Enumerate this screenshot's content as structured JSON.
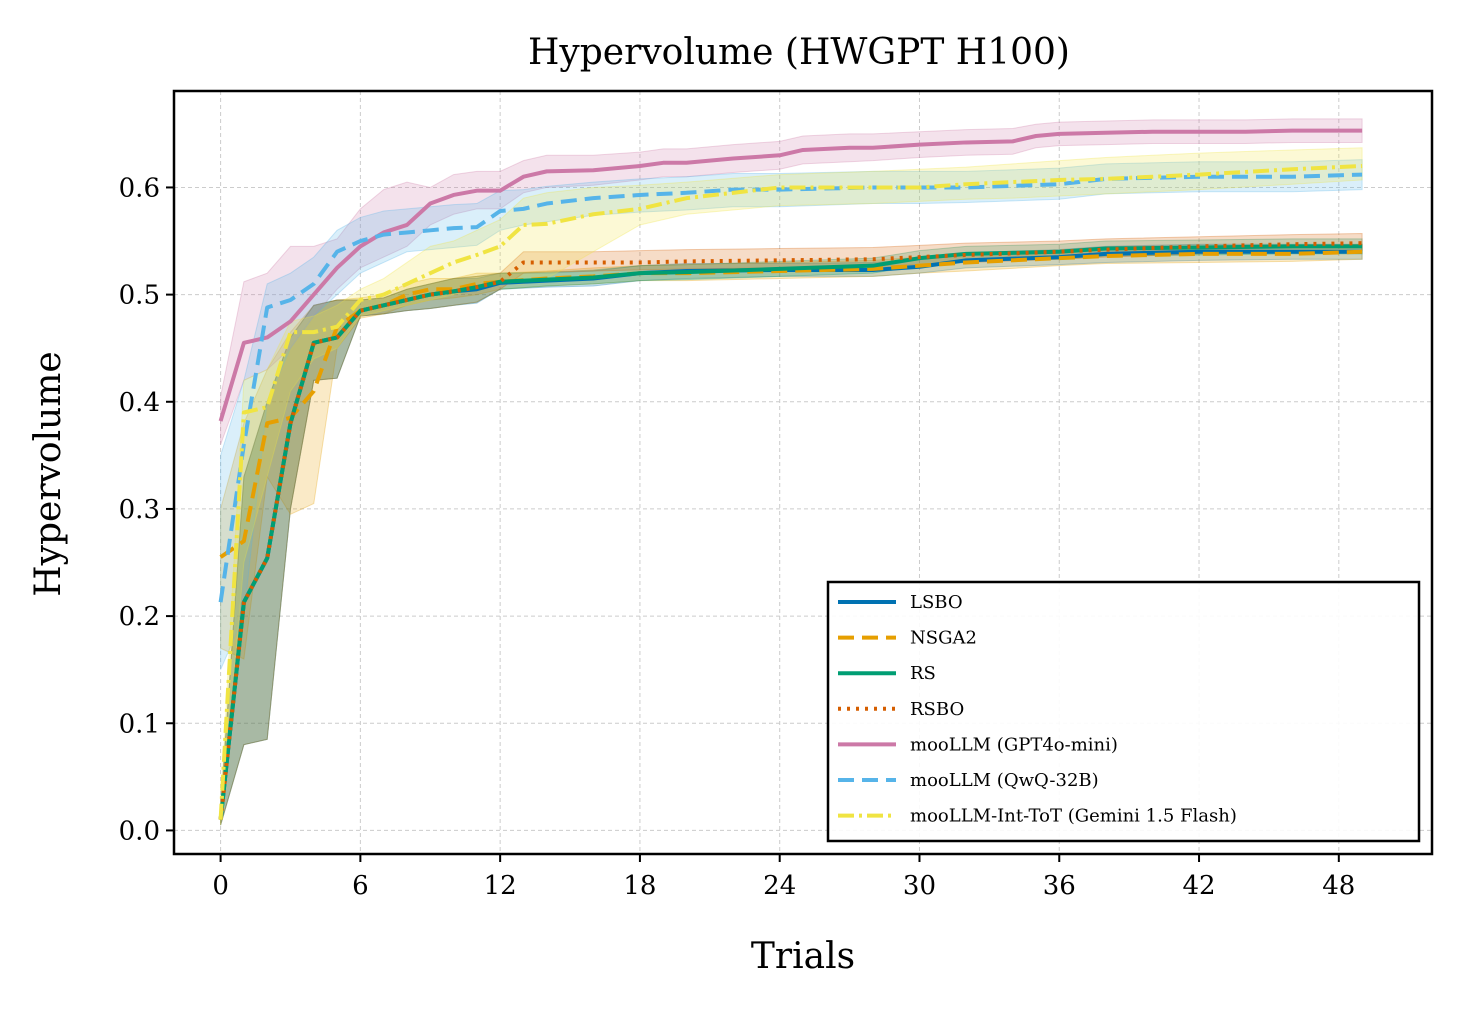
{
  "chart_data": {
    "type": "line",
    "title": "Hypervolume (HWGPT H100)",
    "xlabel": "Trials",
    "ylabel": "Hypervolume",
    "xlim": [
      -2,
      52
    ],
    "ylim": [
      -0.022,
      0.69
    ],
    "xticks": [
      0,
      6,
      12,
      18,
      24,
      30,
      36,
      42,
      48
    ],
    "xtick_labels": [
      "0",
      "6",
      "12",
      "18",
      "24",
      "30",
      "36",
      "42",
      "48"
    ],
    "yticks": [
      0.0,
      0.1,
      0.2,
      0.3,
      0.4,
      0.5,
      0.6
    ],
    "ytick_labels": [
      "0.0",
      "0.1",
      "0.2",
      "0.3",
      "0.4",
      "0.5",
      "0.6"
    ],
    "grid": true,
    "legend_position": "lower-right",
    "series": [
      {
        "name": "LSBO",
        "color": "#0072b2",
        "dash": "solid",
        "x": [
          0,
          1,
          2,
          3,
          4,
          5,
          6,
          7,
          8,
          9,
          10,
          11,
          12,
          14,
          16,
          18,
          20,
          24,
          28,
          30,
          32,
          36,
          38,
          42,
          46,
          49
        ],
        "y": [
          0.01,
          0.213,
          0.254,
          0.38,
          0.455,
          0.46,
          0.485,
          0.49,
          0.495,
          0.5,
          0.503,
          0.505,
          0.511,
          0.513,
          0.515,
          0.52,
          0.522,
          0.523,
          0.523,
          0.526,
          0.532,
          0.535,
          0.538,
          0.54,
          0.54,
          0.54
        ],
        "lower": [
          0.005,
          0.08,
          0.085,
          0.3,
          0.42,
          0.422,
          0.48,
          0.482,
          0.485,
          0.487,
          0.49,
          0.492,
          0.505,
          0.507,
          0.508,
          0.513,
          0.515,
          0.517,
          0.517,
          0.52,
          0.525,
          0.528,
          0.53,
          0.532,
          0.533,
          0.533
        ],
        "upper": [
          0.02,
          0.33,
          0.4,
          0.46,
          0.49,
          0.495,
          0.495,
          0.497,
          0.505,
          0.51,
          0.515,
          0.515,
          0.52,
          0.52,
          0.522,
          0.527,
          0.529,
          0.529,
          0.53,
          0.533,
          0.539,
          0.542,
          0.545,
          0.547,
          0.547,
          0.547
        ]
      },
      {
        "name": "NSGA2",
        "color": "#e69f00",
        "dash": "16,8",
        "x": [
          0,
          1,
          2,
          3,
          4,
          5,
          6,
          7,
          8,
          9,
          10,
          11,
          12,
          14,
          16,
          18,
          20,
          24,
          28,
          30,
          32,
          36,
          38,
          42,
          46,
          49
        ],
        "y": [
          0.255,
          0.27,
          0.38,
          0.385,
          0.41,
          0.47,
          0.485,
          0.49,
          0.5,
          0.505,
          0.505,
          0.51,
          0.512,
          0.515,
          0.517,
          0.52,
          0.52,
          0.522,
          0.524,
          0.527,
          0.53,
          0.534,
          0.536,
          0.538,
          0.538,
          0.54
        ],
        "lower": [
          0.17,
          0.16,
          0.33,
          0.295,
          0.305,
          0.45,
          0.478,
          0.482,
          0.49,
          0.495,
          0.497,
          0.5,
          0.505,
          0.508,
          0.51,
          0.513,
          0.513,
          0.515,
          0.517,
          0.52,
          0.522,
          0.527,
          0.529,
          0.53,
          0.531,
          0.533
        ],
        "upper": [
          0.3,
          0.38,
          0.43,
          0.465,
          0.49,
          0.495,
          0.497,
          0.5,
          0.51,
          0.515,
          0.515,
          0.52,
          0.52,
          0.522,
          0.525,
          0.527,
          0.528,
          0.53,
          0.532,
          0.535,
          0.538,
          0.541,
          0.543,
          0.545,
          0.545,
          0.547
        ]
      },
      {
        "name": "RS",
        "color": "#009e73",
        "dash": "solid",
        "x": [
          0,
          1,
          2,
          3,
          4,
          5,
          6,
          7,
          8,
          9,
          10,
          11,
          12,
          14,
          16,
          18,
          20,
          24,
          28,
          30,
          32,
          36,
          38,
          42,
          46,
          49
        ],
        "y": [
          0.01,
          0.213,
          0.254,
          0.38,
          0.455,
          0.46,
          0.485,
          0.49,
          0.495,
          0.5,
          0.503,
          0.507,
          0.512,
          0.514,
          0.516,
          0.52,
          0.521,
          0.524,
          0.527,
          0.534,
          0.538,
          0.54,
          0.543,
          0.544,
          0.545,
          0.545
        ],
        "lower": [
          0.005,
          0.08,
          0.085,
          0.3,
          0.42,
          0.422,
          0.48,
          0.482,
          0.485,
          0.487,
          0.49,
          0.493,
          0.505,
          0.508,
          0.51,
          0.513,
          0.514,
          0.517,
          0.52,
          0.527,
          0.531,
          0.533,
          0.536,
          0.537,
          0.538,
          0.538
        ],
        "upper": [
          0.02,
          0.33,
          0.4,
          0.46,
          0.49,
          0.495,
          0.495,
          0.497,
          0.505,
          0.51,
          0.515,
          0.517,
          0.52,
          0.521,
          0.523,
          0.527,
          0.528,
          0.531,
          0.534,
          0.541,
          0.545,
          0.547,
          0.55,
          0.551,
          0.552,
          0.552
        ]
      },
      {
        "name": "RSBO",
        "color": "#d55e00",
        "dash": "3,6",
        "x": [
          0,
          1,
          2,
          3,
          4,
          5,
          6,
          7,
          8,
          9,
          10,
          11,
          12,
          13,
          14,
          16,
          18,
          20,
          24,
          28,
          30,
          32,
          36,
          38,
          42,
          46,
          49
        ],
        "y": [
          0.01,
          0.213,
          0.254,
          0.38,
          0.455,
          0.46,
          0.485,
          0.49,
          0.495,
          0.5,
          0.503,
          0.507,
          0.512,
          0.53,
          0.53,
          0.53,
          0.53,
          0.531,
          0.532,
          0.533,
          0.535,
          0.537,
          0.54,
          0.542,
          0.545,
          0.547,
          0.548
        ],
        "lower": [
          0.005,
          0.08,
          0.085,
          0.3,
          0.42,
          0.422,
          0.48,
          0.482,
          0.485,
          0.487,
          0.49,
          0.493,
          0.505,
          0.52,
          0.521,
          0.522,
          0.523,
          0.524,
          0.525,
          0.526,
          0.528,
          0.53,
          0.533,
          0.535,
          0.538,
          0.54,
          0.541
        ],
        "upper": [
          0.02,
          0.33,
          0.4,
          0.46,
          0.49,
          0.495,
          0.495,
          0.497,
          0.505,
          0.51,
          0.515,
          0.517,
          0.52,
          0.54,
          0.54,
          0.54,
          0.541,
          0.542,
          0.543,
          0.544,
          0.546,
          0.548,
          0.55,
          0.552,
          0.554,
          0.556,
          0.557
        ]
      },
      {
        "name": "mooLLM (GPT4o-mini)",
        "color": "#cc79a7",
        "dash": "solid",
        "x": [
          0,
          1,
          2,
          3,
          4,
          5,
          6,
          7,
          8,
          9,
          10,
          11,
          12,
          13,
          14,
          16,
          18,
          19,
          20,
          22,
          24,
          25,
          27,
          28,
          30,
          32,
          34,
          35,
          36,
          38,
          40,
          44,
          46,
          49
        ],
        "y": [
          0.382,
          0.455,
          0.46,
          0.475,
          0.5,
          0.525,
          0.545,
          0.558,
          0.565,
          0.585,
          0.593,
          0.597,
          0.597,
          0.61,
          0.615,
          0.616,
          0.62,
          0.623,
          0.623,
          0.627,
          0.63,
          0.635,
          0.637,
          0.637,
          0.64,
          0.642,
          0.643,
          0.648,
          0.65,
          0.651,
          0.652,
          0.652,
          0.653,
          0.653
        ],
        "lower": [
          0.36,
          0.42,
          0.43,
          0.45,
          0.48,
          0.505,
          0.525,
          0.535,
          0.545,
          0.565,
          0.575,
          0.58,
          0.58,
          0.595,
          0.6,
          0.602,
          0.607,
          0.61,
          0.61,
          0.614,
          0.617,
          0.622,
          0.624,
          0.625,
          0.628,
          0.63,
          0.631,
          0.637,
          0.639,
          0.64,
          0.641,
          0.641,
          0.642,
          0.642
        ],
        "upper": [
          0.405,
          0.512,
          0.52,
          0.545,
          0.545,
          0.552,
          0.58,
          0.598,
          0.605,
          0.6,
          0.612,
          0.615,
          0.615,
          0.625,
          0.63,
          0.63,
          0.633,
          0.636,
          0.636,
          0.64,
          0.643,
          0.648,
          0.65,
          0.65,
          0.652,
          0.654,
          0.655,
          0.659,
          0.661,
          0.662,
          0.663,
          0.663,
          0.664,
          0.664
        ]
      },
      {
        "name": "mooLLM (QwQ-32B)",
        "color": "#56b4e9",
        "dash": "16,8",
        "x": [
          0,
          1,
          2,
          3,
          4,
          5,
          6,
          7,
          8,
          9,
          10,
          11,
          12,
          13,
          14,
          16,
          18,
          20,
          22,
          24,
          28,
          30,
          32,
          36,
          38,
          42,
          46,
          49
        ],
        "y": [
          0.213,
          0.36,
          0.488,
          0.495,
          0.51,
          0.54,
          0.55,
          0.556,
          0.558,
          0.56,
          0.562,
          0.563,
          0.578,
          0.58,
          0.585,
          0.59,
          0.593,
          0.595,
          0.598,
          0.598,
          0.6,
          0.6,
          0.6,
          0.603,
          0.608,
          0.61,
          0.61,
          0.612
        ],
        "lower": [
          0.15,
          0.2,
          0.4,
          0.45,
          0.48,
          0.5,
          0.52,
          0.53,
          0.54,
          0.542,
          0.544,
          0.546,
          0.56,
          0.565,
          0.568,
          0.574,
          0.577,
          0.579,
          0.582,
          0.582,
          0.585,
          0.585,
          0.586,
          0.589,
          0.594,
          0.596,
          0.596,
          0.598
        ],
        "upper": [
          0.35,
          0.42,
          0.51,
          0.52,
          0.535,
          0.56,
          0.572,
          0.578,
          0.58,
          0.582,
          0.584,
          0.585,
          0.597,
          0.598,
          0.601,
          0.605,
          0.608,
          0.61,
          0.613,
          0.613,
          0.615,
          0.615,
          0.615,
          0.618,
          0.622,
          0.624,
          0.624,
          0.626
        ]
      },
      {
        "name": "mooLLM-Int-ToT (Gemini 1.5 Flash)",
        "color": "#f0e442",
        "dash": "16,5,3,5",
        "x": [
          0,
          1,
          2,
          3,
          4,
          5,
          6,
          7,
          8,
          9,
          10,
          11,
          12,
          13,
          14,
          16,
          18,
          20,
          24,
          28,
          30,
          32,
          34,
          36,
          38,
          40,
          42,
          46,
          49
        ],
        "y": [
          0.01,
          0.39,
          0.395,
          0.465,
          0.465,
          0.47,
          0.495,
          0.5,
          0.51,
          0.52,
          0.53,
          0.537,
          0.545,
          0.565,
          0.566,
          0.575,
          0.58,
          0.59,
          0.6,
          0.6,
          0.6,
          0.603,
          0.605,
          0.607,
          0.608,
          0.61,
          0.612,
          0.617,
          0.62
        ],
        "lower": [
          0.005,
          0.25,
          0.33,
          0.41,
          0.44,
          0.45,
          0.48,
          0.485,
          0.49,
          0.495,
          0.5,
          0.505,
          0.51,
          0.51,
          0.515,
          0.54,
          0.565,
          0.575,
          0.583,
          0.585,
          0.587,
          0.589,
          0.59,
          0.592,
          0.594,
          0.596,
          0.598,
          0.603,
          0.607
        ],
        "upper": [
          0.02,
          0.42,
          0.43,
          0.475,
          0.48,
          0.49,
          0.505,
          0.515,
          0.53,
          0.545,
          0.55,
          0.56,
          0.57,
          0.59,
          0.595,
          0.6,
          0.602,
          0.605,
          0.612,
          0.615,
          0.617,
          0.619,
          0.622,
          0.625,
          0.628,
          0.63,
          0.632,
          0.635,
          0.637
        ]
      }
    ]
  }
}
